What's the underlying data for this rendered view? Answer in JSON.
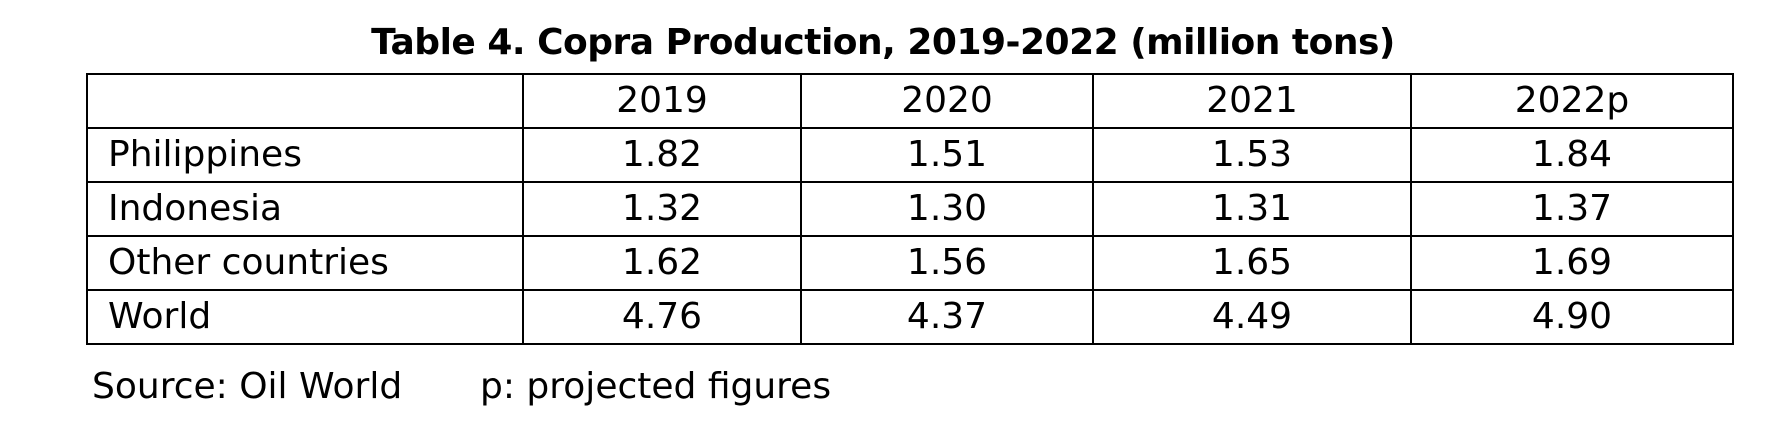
{
  "title": "Table 4. Copra Production, 2019-2022 (million tons)",
  "table": {
    "corner": "",
    "headers": [
      "2019",
      "2020",
      "2021",
      "2022p"
    ],
    "rows": [
      {
        "label": "Philippines",
        "values": [
          "1.82",
          "1.51",
          "1.53",
          "1.84"
        ]
      },
      {
        "label": "Indonesia",
        "values": [
          "1.32",
          "1.30",
          "1.31",
          "1.37"
        ]
      },
      {
        "label": "Other countries",
        "values": [
          "1.62",
          "1.56",
          "1.65",
          "1.69"
        ]
      },
      {
        "label": "World",
        "values": [
          "4.76",
          "4.37",
          "4.49",
          "4.90"
        ]
      }
    ]
  },
  "footer": {
    "source": "Source: Oil World",
    "note": "p: projected figures"
  }
}
